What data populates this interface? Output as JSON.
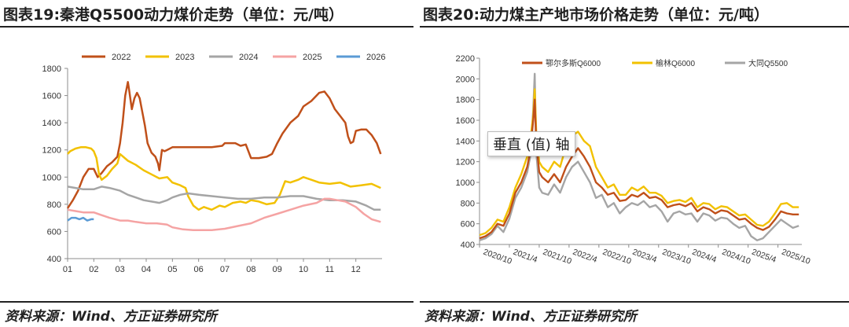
{
  "left": {
    "title": "图表19:秦港Q5500动力煤价走势（单位：元/吨）",
    "source": "资料来源：Wind、方正证券研究所",
    "chart_data": {
      "type": "line",
      "title": "秦港Q5500动力煤价走势（单位：元/吨）",
      "xlabel": "",
      "ylabel": "",
      "ylim": [
        400,
        1800
      ],
      "y_ticks": [
        400,
        600,
        800,
        1000,
        1200,
        1400,
        1600,
        1800
      ],
      "x_ticks": [
        "01",
        "02",
        "03",
        "04",
        "05",
        "06",
        "07",
        "08",
        "09",
        "10",
        "11",
        "12"
      ],
      "xlim": [
        1,
        13
      ],
      "grid": false,
      "legend": "top",
      "series": [
        {
          "name": "2022",
          "color": "#C0501A",
          "x": [
            1,
            1.2,
            1.4,
            1.6,
            1.8,
            2,
            2.15,
            2.3,
            2.5,
            2.7,
            2.9,
            3,
            3.1,
            3.2,
            3.3,
            3.35,
            3.45,
            3.55,
            3.65,
            3.75,
            3.85,
            3.95,
            4.05,
            4.2,
            4.35,
            4.45,
            4.5,
            4.6,
            4.7,
            4.8,
            5,
            5.5,
            6,
            6.5,
            6.9,
            7,
            7.2,
            7.4,
            7.6,
            7.8,
            8,
            8.3,
            8.6,
            8.8,
            9,
            9.2,
            9.5,
            9.8,
            10,
            10.3,
            10.6,
            10.8,
            11,
            11.2,
            11.4,
            11.6,
            11.7,
            11.8,
            11.9,
            12,
            12.2,
            12.4,
            12.6,
            12.8,
            12.95
          ],
          "values": [
            770,
            830,
            900,
            1000,
            1060,
            1060,
            1000,
            1030,
            1080,
            1110,
            1150,
            1250,
            1400,
            1600,
            1700,
            1640,
            1500,
            1580,
            1620,
            1580,
            1480,
            1380,
            1250,
            1180,
            1150,
            1100,
            1050,
            1200,
            1190,
            1200,
            1220,
            1220,
            1220,
            1220,
            1230,
            1250,
            1250,
            1250,
            1230,
            1240,
            1140,
            1140,
            1150,
            1170,
            1250,
            1320,
            1400,
            1450,
            1520,
            1560,
            1620,
            1630,
            1580,
            1500,
            1450,
            1400,
            1300,
            1250,
            1260,
            1340,
            1350,
            1350,
            1310,
            1250,
            1170
          ]
        },
        {
          "name": "2023",
          "color": "#F2C100",
          "x": [
            1,
            1.1,
            1.3,
            1.5,
            1.7,
            1.9,
            2,
            2.1,
            2.2,
            2.3,
            2.5,
            2.7,
            2.9,
            3,
            3.3,
            3.6,
            3.9,
            4.2,
            4.5,
            4.8,
            5,
            5.3,
            5.5,
            5.6,
            5.8,
            6,
            6.2,
            6.5,
            6.8,
            7,
            7.3,
            7.6,
            7.8,
            8,
            8.3,
            8.6,
            8.9,
            9.1,
            9.3,
            9.5,
            9.8,
            10,
            10.3,
            10.6,
            11,
            11.4,
            11.8,
            12.2,
            12.6,
            12.95
          ],
          "values": [
            1170,
            1190,
            1210,
            1220,
            1220,
            1210,
            1190,
            1140,
            1020,
            980,
            1010,
            1060,
            1100,
            1170,
            1120,
            1090,
            1050,
            1020,
            990,
            1000,
            960,
            940,
            920,
            860,
            790,
            760,
            780,
            760,
            790,
            780,
            810,
            820,
            810,
            830,
            820,
            800,
            810,
            870,
            970,
            960,
            980,
            1000,
            980,
            960,
            950,
            960,
            930,
            940,
            950,
            920
          ]
        },
        {
          "name": "2024",
          "color": "#A5A5A5",
          "x": [
            1,
            1.3,
            1.6,
            2,
            2.3,
            2.6,
            3,
            3.3,
            3.6,
            3.9,
            4.2,
            4.5,
            4.8,
            5,
            5.3,
            5.6,
            6,
            6.5,
            7,
            7.5,
            8,
            8.5,
            9,
            9.5,
            10,
            10.5,
            11,
            11.5,
            12,
            12.4,
            12.7,
            12.95
          ],
          "values": [
            930,
            920,
            910,
            910,
            930,
            920,
            900,
            870,
            850,
            830,
            820,
            810,
            830,
            850,
            870,
            880,
            870,
            860,
            850,
            840,
            840,
            850,
            850,
            860,
            860,
            840,
            830,
            830,
            820,
            790,
            760,
            760
          ]
        },
        {
          "name": "2025",
          "color": "#F5A3A3",
          "x": [
            1,
            1.3,
            1.6,
            2,
            2.3,
            2.6,
            3,
            3.3,
            3.6,
            4,
            4.4,
            4.8,
            5,
            5.4,
            5.8,
            6,
            6.5,
            7,
            7.5,
            8,
            8.5,
            9,
            9.5,
            10,
            10.5,
            10.8,
            11,
            11.3,
            11.6,
            12,
            12.3,
            12.6,
            12.95
          ],
          "values": [
            760,
            750,
            740,
            740,
            720,
            700,
            680,
            680,
            670,
            660,
            660,
            650,
            630,
            615,
            610,
            610,
            610,
            620,
            640,
            660,
            700,
            730,
            760,
            790,
            810,
            840,
            840,
            830,
            820,
            780,
            730,
            690,
            670
          ]
        },
        {
          "name": "2026",
          "color": "#5B9BD5",
          "x": [
            1,
            1.15,
            1.3,
            1.45,
            1.6,
            1.75,
            1.9,
            2
          ],
          "values": [
            680,
            700,
            700,
            690,
            700,
            680,
            690,
            690
          ]
        }
      ]
    }
  },
  "right": {
    "title": "图表20:动力煤主产地市场价格走势（单位：元/吨）",
    "source": "资料来源：Wind、方正证券研究所",
    "tooltip": "垂直 (值) 轴",
    "chart_data": {
      "type": "line",
      "title": "动力煤主产地市场价格走势（单位：元/吨）",
      "xlabel": "",
      "ylabel": "",
      "ylim": [
        400,
        2200
      ],
      "y_ticks": [
        400,
        600,
        800,
        1000,
        1200,
        1400,
        1600,
        1800,
        2000,
        2200
      ],
      "x_ticks": [
        "2020/10",
        "2021/4",
        "2021/10",
        "2022/4",
        "2022/10",
        "2023/4",
        "2023/10",
        "2024/4",
        "2024/10",
        "2025/4",
        "2025/10"
      ],
      "xlim": [
        0,
        10.8
      ],
      "grid": false,
      "legend": "top",
      "series": [
        {
          "name": "鄂尔多斯Q6000",
          "color": "#C0501A",
          "x": [
            0,
            0.2,
            0.4,
            0.6,
            0.8,
            1,
            1.2,
            1.4,
            1.6,
            1.7,
            1.8,
            1.85,
            1.9,
            2,
            2.1,
            2.3,
            2.5,
            2.7,
            2.9,
            3.1,
            3.3,
            3.5,
            3.7,
            3.9,
            4.1,
            4.3,
            4.5,
            4.7,
            4.9,
            5.1,
            5.3,
            5.5,
            5.7,
            5.9,
            6.1,
            6.3,
            6.5,
            6.7,
            6.9,
            7.1,
            7.3,
            7.5,
            7.7,
            7.9,
            8.1,
            8.3,
            8.5,
            8.7,
            8.9,
            9.1,
            9.3,
            9.5,
            9.7,
            9.9,
            10.1,
            10.3,
            10.5,
            10.7
          ],
          "values": [
            460,
            480,
            520,
            600,
            580,
            700,
            900,
            1000,
            1150,
            1300,
            1600,
            1800,
            1400,
            1100,
            1050,
            1000,
            1080,
            1000,
            1150,
            1250,
            1330,
            1250,
            1150,
            1000,
            950,
            880,
            900,
            820,
            830,
            880,
            860,
            900,
            850,
            860,
            830,
            760,
            780,
            790,
            770,
            800,
            720,
            760,
            740,
            700,
            730,
            720,
            680,
            640,
            650,
            600,
            560,
            540,
            570,
            640,
            720,
            700,
            690,
            690
          ]
        },
        {
          "name": "榆林Q6000",
          "color": "#F2C100",
          "x": [
            0,
            0.2,
            0.4,
            0.6,
            0.8,
            1,
            1.2,
            1.4,
            1.6,
            1.7,
            1.8,
            1.85,
            1.9,
            2,
            2.1,
            2.3,
            2.5,
            2.7,
            2.9,
            3.1,
            3.3,
            3.5,
            3.7,
            3.9,
            4.1,
            4.3,
            4.5,
            4.7,
            4.9,
            5.1,
            5.3,
            5.5,
            5.7,
            5.9,
            6.1,
            6.3,
            6.5,
            6.7,
            6.9,
            7.1,
            7.3,
            7.5,
            7.7,
            7.9,
            8.1,
            8.3,
            8.5,
            8.7,
            8.9,
            9.1,
            9.3,
            9.5,
            9.7,
            9.9,
            10.1,
            10.3,
            10.5,
            10.7
          ],
          "values": [
            490,
            510,
            560,
            640,
            620,
            760,
            950,
            1080,
            1250,
            1400,
            1650,
            1900,
            1500,
            1200,
            1150,
            1100,
            1200,
            1150,
            1350,
            1450,
            1490,
            1400,
            1350,
            1150,
            1050,
            950,
            980,
            880,
            880,
            950,
            920,
            960,
            900,
            900,
            870,
            800,
            820,
            830,
            810,
            850,
            760,
            800,
            790,
            740,
            770,
            760,
            720,
            680,
            690,
            640,
            590,
            580,
            620,
            700,
            790,
            800,
            760,
            760
          ]
        },
        {
          "name": "大同Q5500",
          "color": "#A5A5A5",
          "x": [
            0,
            0.2,
            0.4,
            0.6,
            0.8,
            1,
            1.2,
            1.4,
            1.6,
            1.7,
            1.8,
            1.85,
            1.9,
            2,
            2.1,
            2.3,
            2.5,
            2.7,
            2.9,
            3.1,
            3.3,
            3.5,
            3.7,
            3.9,
            4.1,
            4.3,
            4.5,
            4.7,
            4.9,
            5.1,
            5.3,
            5.5,
            5.7,
            5.9,
            6.1,
            6.3,
            6.5,
            6.7,
            6.9,
            7.1,
            7.3,
            7.5,
            7.7,
            7.9,
            8.1,
            8.3,
            8.5,
            8.7,
            8.9,
            9.1,
            9.3,
            9.5,
            9.7,
            9.9,
            10.1,
            10.3,
            10.5,
            10.7
          ],
          "values": [
            440,
            460,
            500,
            580,
            520,
            650,
            850,
            950,
            1100,
            1250,
            1700,
            2050,
            1300,
            950,
            900,
            880,
            980,
            900,
            1050,
            1150,
            1200,
            1100,
            1000,
            850,
            880,
            760,
            800,
            700,
            760,
            800,
            780,
            820,
            760,
            780,
            720,
            620,
            700,
            720,
            690,
            700,
            620,
            700,
            680,
            630,
            660,
            650,
            600,
            560,
            580,
            480,
            440,
            460,
            520,
            580,
            640,
            600,
            560,
            580
          ]
        }
      ]
    }
  }
}
